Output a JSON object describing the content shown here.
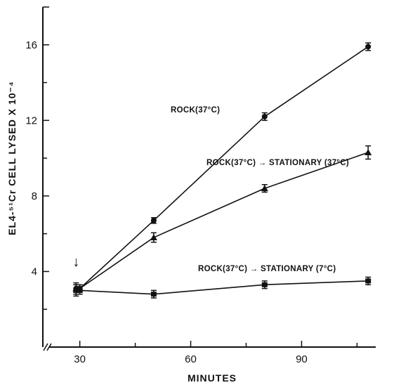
{
  "chart_data": {
    "type": "line",
    "xlabel": "MINUTES",
    "ylabel": "EL4-⁵¹Cr  CELL LYSED X 10⁻⁴",
    "xlim": [
      20,
      115
    ],
    "ylim": [
      0,
      18
    ],
    "x_ticks": [
      30,
      60,
      90
    ],
    "y_ticks": [
      4,
      8,
      12,
      16
    ],
    "grid": false,
    "legend": "none",
    "annotations": [
      {
        "text": "↓",
        "x": 29,
        "y": 4.5
      }
    ],
    "series": [
      {
        "name": "ROCK(37°C)",
        "marker": "circle",
        "points": [
          {
            "x": 29,
            "y": 3.1,
            "err": 0.2
          },
          {
            "x": 30,
            "y": 3.1,
            "err": 0.2
          },
          {
            "x": 50,
            "y": 6.7,
            "err": 0.15
          },
          {
            "x": 80,
            "y": 12.2,
            "err": 0.2
          },
          {
            "x": 108,
            "y": 15.9,
            "err": 0.2
          }
        ]
      },
      {
        "name": "ROCK(37°C) → STATIONARY (37°C)",
        "marker": "triangle",
        "points": [
          {
            "x": 29,
            "y": 3.1,
            "err": 0.3
          },
          {
            "x": 30,
            "y": 3.1,
            "err": 0.2
          },
          {
            "x": 50,
            "y": 5.8,
            "err": 0.25
          },
          {
            "x": 80,
            "y": 8.4,
            "err": 0.2
          },
          {
            "x": 108,
            "y": 10.3,
            "err": 0.35
          }
        ]
      },
      {
        "name": "ROCK(37°C) → STATIONARY (7°C)",
        "marker": "square",
        "points": [
          {
            "x": 29,
            "y": 3.0,
            "err": 0.3
          },
          {
            "x": 30,
            "y": 3.0,
            "err": 0.2
          },
          {
            "x": 50,
            "y": 2.8,
            "err": 0.2
          },
          {
            "x": 80,
            "y": 3.3,
            "err": 0.2
          },
          {
            "x": 108,
            "y": 3.5,
            "err": 0.2
          }
        ]
      }
    ]
  }
}
